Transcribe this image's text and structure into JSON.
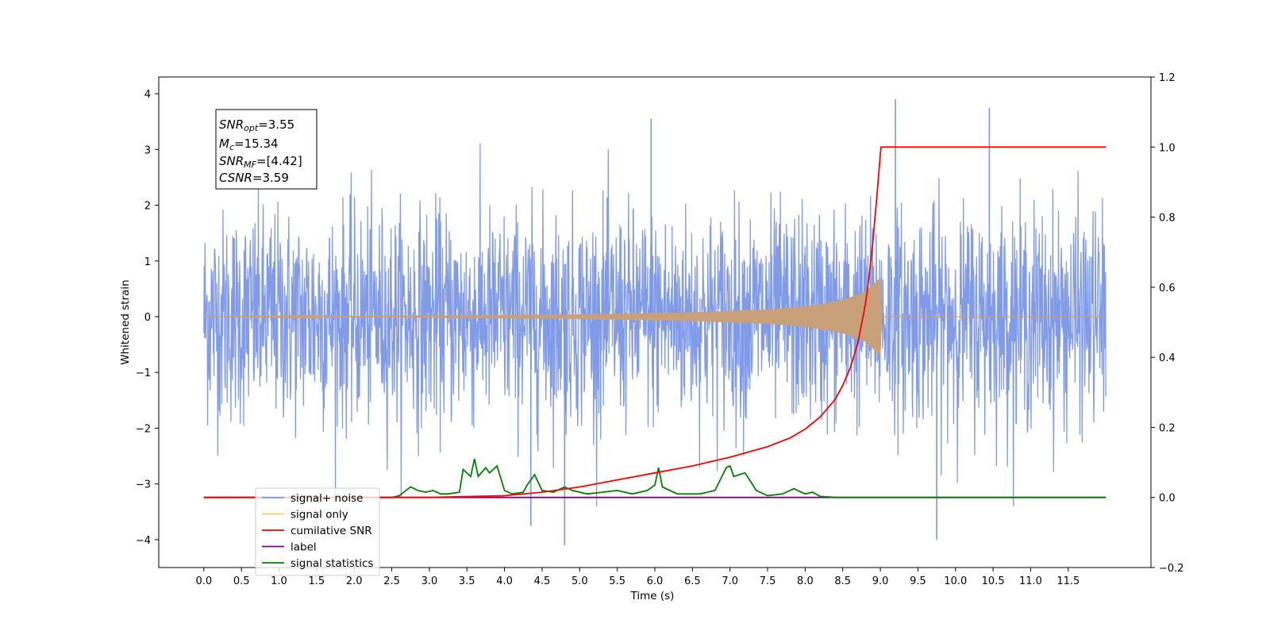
{
  "chart_data": {
    "type": "line",
    "xlabel": "Time (s)",
    "ylabel": "Whitened strain",
    "xlim": [
      -0.6,
      12.6
    ],
    "ylim_left": [
      -4.5,
      4.3
    ],
    "ylim_right": [
      -0.2,
      1.2
    ],
    "x_ticks": [
      "0.0",
      "0.5",
      "1.0",
      "1.5",
      "2.0",
      "2.5",
      "3.0",
      "3.5",
      "4.0",
      "4.5",
      "5.0",
      "5.5",
      "6.0",
      "6.5",
      "7.0",
      "7.5",
      "8.0",
      "8.5",
      "9.0",
      "9.5",
      "10.0",
      "10.5",
      "11.0",
      "11.5"
    ],
    "y_ticks_left": [
      "4",
      "3",
      "2",
      "1",
      "0",
      "−1",
      "−2",
      "−3",
      "−4"
    ],
    "y_ticks_right": [
      "1.2",
      "1.0",
      "0.8",
      "0.6",
      "0.4",
      "0.2",
      "0.0",
      "−0.2"
    ],
    "grid": false,
    "legend_position": "lower-left",
    "annotation": {
      "snr_opt": {
        "base": "SNR",
        "sub": "opt",
        "value": "=3.55"
      },
      "mc": {
        "base": "M",
        "sub": "c",
        "value": "=15.34"
      },
      "snr_mf": {
        "base": "SNR",
        "sub": "MF",
        "value": "=[4.42]"
      },
      "csnr": {
        "base": "CSNR",
        "sub": "",
        "value": "=3.59"
      }
    },
    "series": [
      {
        "name": "signal+ noise",
        "color": "#7a96e8",
        "axis": "left",
        "description_values": {
          "x_range": [
            0.0,
            12.0
          ],
          "envelope": [
            -2.2,
            2.7
          ],
          "peaks": [
            [
              9.2,
              3.9
            ],
            [
              10.45,
              3.75
            ],
            [
              5.95,
              3.55
            ],
            [
              4.8,
              -4.1
            ],
            [
              9.75,
              -4.0
            ],
            [
              4.35,
              -3.75
            ]
          ]
        }
      },
      {
        "name": "signal only",
        "color": "#c8a07a",
        "axis": "left",
        "envelope_points": [
          [
            0.0,
            0.0
          ],
          [
            3.0,
            0.02
          ],
          [
            5.0,
            0.04
          ],
          [
            6.5,
            0.08
          ],
          [
            7.5,
            0.13
          ],
          [
            8.0,
            0.18
          ],
          [
            8.5,
            0.3
          ],
          [
            8.8,
            0.45
          ],
          [
            9.0,
            0.7
          ],
          [
            9.02,
            0.0
          ],
          [
            12.0,
            0.0
          ]
        ]
      },
      {
        "name": "cumilative SNR",
        "color": "#ff0000",
        "axis": "right",
        "x": [
          0.0,
          2.0,
          3.0,
          4.0,
          4.5,
          5.0,
          5.5,
          6.0,
          6.5,
          7.0,
          7.5,
          7.8,
          8.0,
          8.2,
          8.4,
          8.5,
          8.6,
          8.7,
          8.8,
          8.85,
          8.9,
          8.95,
          9.0,
          9.01,
          12.0
        ],
        "y": [
          0.0,
          0.0,
          0.0,
          0.005,
          0.015,
          0.03,
          0.05,
          0.07,
          0.09,
          0.115,
          0.145,
          0.17,
          0.195,
          0.23,
          0.28,
          0.32,
          0.37,
          0.44,
          0.55,
          0.63,
          0.73,
          0.85,
          0.98,
          1.0,
          1.0
        ]
      },
      {
        "name": "label",
        "color": "#800080",
        "axis": "right",
        "x": [
          0.0,
          12.0
        ],
        "y": [
          0.0,
          0.0
        ]
      },
      {
        "name": "signal statistics",
        "color": "#008000",
        "axis": "right",
        "x": [
          0.0,
          2.5,
          2.6,
          2.75,
          2.85,
          2.95,
          3.05,
          3.15,
          3.25,
          3.4,
          3.45,
          3.55,
          3.6,
          3.65,
          3.75,
          3.8,
          3.9,
          4.0,
          4.1,
          4.25,
          4.3,
          4.4,
          4.5,
          4.65,
          4.8,
          4.9,
          5.1,
          5.3,
          5.5,
          5.7,
          5.9,
          6.0,
          6.05,
          6.1,
          6.3,
          6.6,
          6.8,
          6.95,
          7.0,
          7.05,
          7.2,
          7.35,
          7.5,
          7.7,
          7.85,
          8.0,
          8.1,
          8.2,
          8.4,
          9.0,
          12.0
        ],
        "y": [
          0.0,
          0.0,
          0.005,
          0.03,
          0.02,
          0.015,
          0.02,
          0.01,
          0.01,
          0.015,
          0.08,
          0.06,
          0.11,
          0.06,
          0.085,
          0.07,
          0.09,
          0.02,
          0.01,
          0.015,
          0.035,
          0.065,
          0.02,
          0.015,
          0.03,
          0.02,
          0.01,
          0.015,
          0.02,
          0.01,
          0.02,
          0.035,
          0.085,
          0.03,
          0.01,
          0.01,
          0.02,
          0.085,
          0.09,
          0.06,
          0.07,
          0.02,
          0.005,
          0.01,
          0.025,
          0.01,
          0.015,
          0.003,
          0.0,
          0.0,
          0.0
        ]
      }
    ],
    "legend_entries": [
      {
        "label": "signal+ noise",
        "color": "#7a96e8"
      },
      {
        "label": "signal only",
        "color": "#ffc966"
      },
      {
        "label": "cumilative SNR",
        "color": "#ff0000"
      },
      {
        "label": "label",
        "color": "#800080"
      },
      {
        "label": "signal statistics",
        "color": "#008000"
      }
    ]
  }
}
